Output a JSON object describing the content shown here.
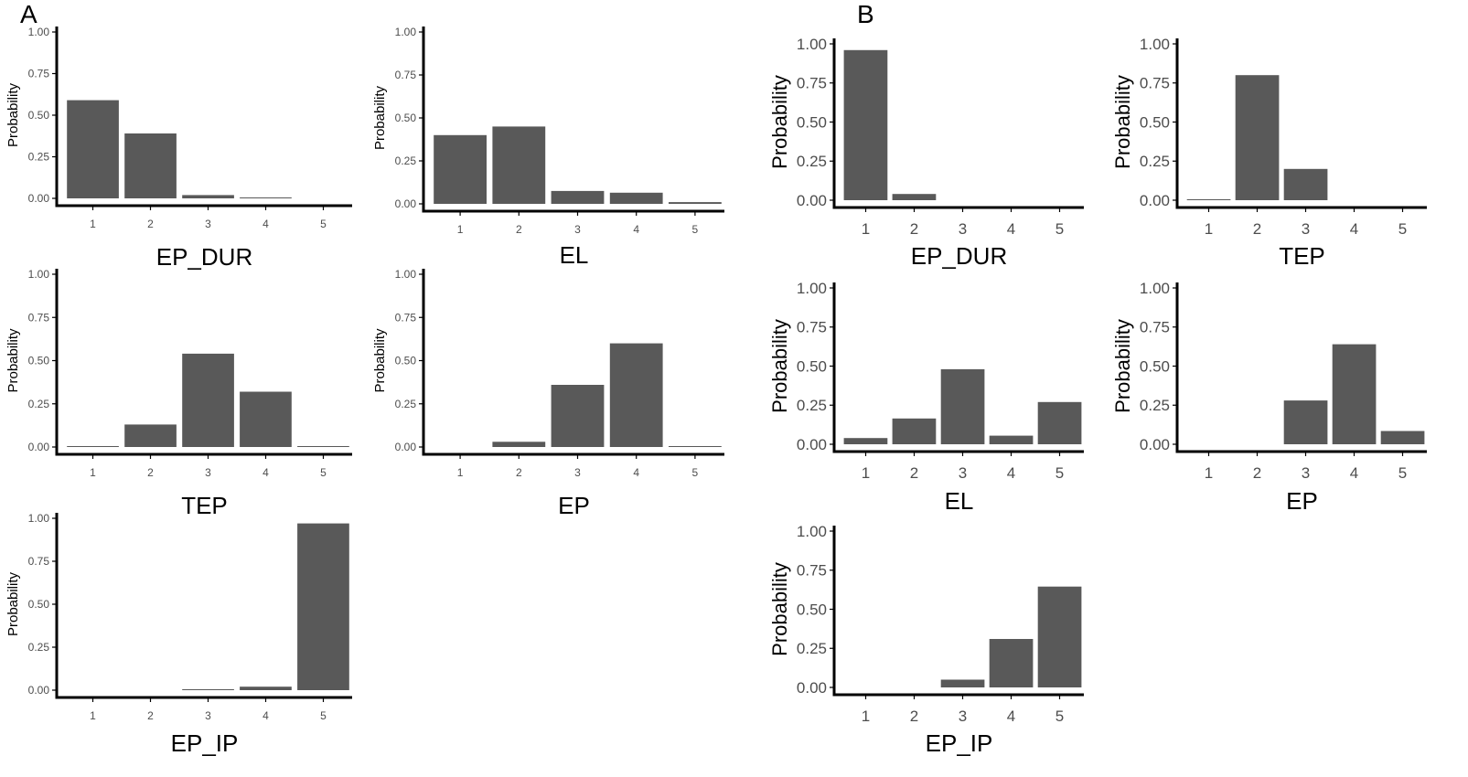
{
  "panels": [
    {
      "id": "A",
      "label": "A"
    },
    {
      "id": "B",
      "label": "B"
    }
  ],
  "y_tick_labels": [
    "0.00",
    "0.25",
    "0.50",
    "0.75",
    "1.00"
  ],
  "chart_data": [
    {
      "type": "bar",
      "panel": "A",
      "xlabel": "EP_DUR",
      "ylabel": "Probability",
      "categories": [
        "1",
        "2",
        "3",
        "4",
        "5"
      ],
      "values": [
        0.59,
        0.39,
        0.02,
        0.003,
        0.0
      ],
      "ylim": [
        0,
        1
      ]
    },
    {
      "type": "bar",
      "panel": "A",
      "xlabel": "EL",
      "ylabel": "Probability",
      "categories": [
        "1",
        "2",
        "3",
        "4",
        "5"
      ],
      "values": [
        0.4,
        0.45,
        0.075,
        0.065,
        0.01
      ],
      "ylim": [
        0,
        1
      ]
    },
    {
      "type": "bar",
      "panel": "A",
      "xlabel": "TEP",
      "ylabel": "Probability",
      "categories": [
        "1",
        "2",
        "3",
        "4",
        "5"
      ],
      "values": [
        0.005,
        0.13,
        0.54,
        0.32,
        0.005
      ],
      "ylim": [
        0,
        1
      ]
    },
    {
      "type": "bar",
      "panel": "A",
      "xlabel": "EP",
      "ylabel": "Probability",
      "categories": [
        "1",
        "2",
        "3",
        "4",
        "5"
      ],
      "values": [
        0.0,
        0.03,
        0.36,
        0.6,
        0.005
      ],
      "ylim": [
        0,
        1
      ]
    },
    {
      "type": "bar",
      "panel": "A",
      "xlabel": "EP_IP",
      "ylabel": "Probability",
      "categories": [
        "1",
        "2",
        "3",
        "4",
        "5"
      ],
      "values": [
        0.0,
        0.0,
        0.005,
        0.02,
        0.97
      ],
      "ylim": [
        0,
        1
      ]
    },
    {
      "type": "bar",
      "panel": "B",
      "xlabel": "EP_DUR",
      "ylabel": "Probability",
      "categories": [
        "1",
        "2",
        "3",
        "4",
        "5"
      ],
      "values": [
        0.96,
        0.04,
        0.0,
        0.0,
        0.0
      ],
      "ylim": [
        0,
        1
      ]
    },
    {
      "type": "bar",
      "panel": "B",
      "xlabel": "TEP",
      "ylabel": "Probability",
      "categories": [
        "1",
        "2",
        "3",
        "4",
        "5"
      ],
      "values": [
        0.005,
        0.8,
        0.2,
        0.0,
        0.0
      ],
      "ylim": [
        0,
        1
      ]
    },
    {
      "type": "bar",
      "panel": "B",
      "xlabel": "EL",
      "ylabel": "Probability",
      "categories": [
        "1",
        "2",
        "3",
        "4",
        "5"
      ],
      "values": [
        0.04,
        0.165,
        0.48,
        0.055,
        0.27
      ],
      "ylim": [
        0,
        1
      ]
    },
    {
      "type": "bar",
      "panel": "B",
      "xlabel": "EP",
      "ylabel": "Probability",
      "categories": [
        "1",
        "2",
        "3",
        "4",
        "5"
      ],
      "values": [
        0.0,
        0.0,
        0.28,
        0.64,
        0.085
      ],
      "ylim": [
        0,
        1
      ]
    },
    {
      "type": "bar",
      "panel": "B",
      "xlabel": "EP_IP",
      "ylabel": "Probability",
      "categories": [
        "1",
        "2",
        "3",
        "4",
        "5"
      ],
      "values": [
        0.0,
        0.0,
        0.05,
        0.31,
        0.645
      ],
      "ylim": [
        0,
        1
      ]
    }
  ]
}
